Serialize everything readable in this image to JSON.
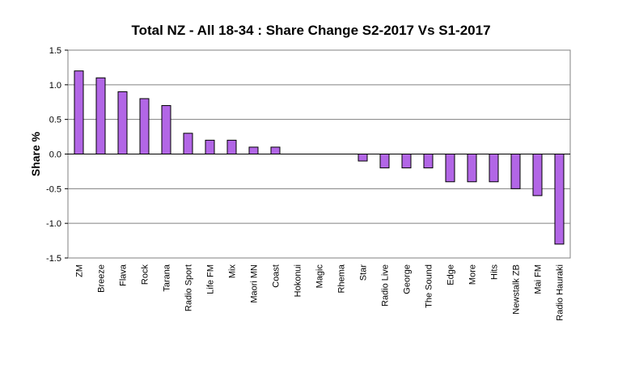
{
  "chart_data": {
    "type": "bar",
    "title": "Total NZ - All 18-34 : Share Change  S2-2017 Vs S1-2017",
    "ylabel": "Share %",
    "xlabel": "",
    "ylim": [
      -1.5,
      1.5
    ],
    "yticks": [
      "1.5",
      "1.0",
      "0.5",
      "0.0",
      "-0.5",
      "-1.0",
      "-1.5"
    ],
    "ytick_values": [
      1.5,
      1.0,
      0.5,
      0.0,
      -0.5,
      -1.0,
      -1.5
    ],
    "grid": true,
    "categories": [
      "ZM",
      "Breeze",
      "Flava",
      "Rock",
      "Tarana",
      "Radio Sport",
      "Life FM",
      "Mix",
      "Maori MN",
      "Coast",
      "Hokonui",
      "Magic",
      "Rhema",
      "Star",
      "Radio Live",
      "George",
      "The Sound",
      "Edge",
      "More",
      "Hits",
      "Newstalk ZB",
      "Mai FM",
      "Radio Hauraki"
    ],
    "values": [
      1.2,
      1.1,
      0.9,
      0.8,
      0.7,
      0.3,
      0.2,
      0.2,
      0.1,
      0.1,
      0.0,
      0.0,
      0.0,
      -0.1,
      -0.2,
      -0.2,
      -0.2,
      -0.4,
      -0.4,
      -0.4,
      -0.5,
      -0.6,
      -1.3
    ],
    "bar_color": "#B266E6",
    "bar_stroke": "#000000"
  }
}
